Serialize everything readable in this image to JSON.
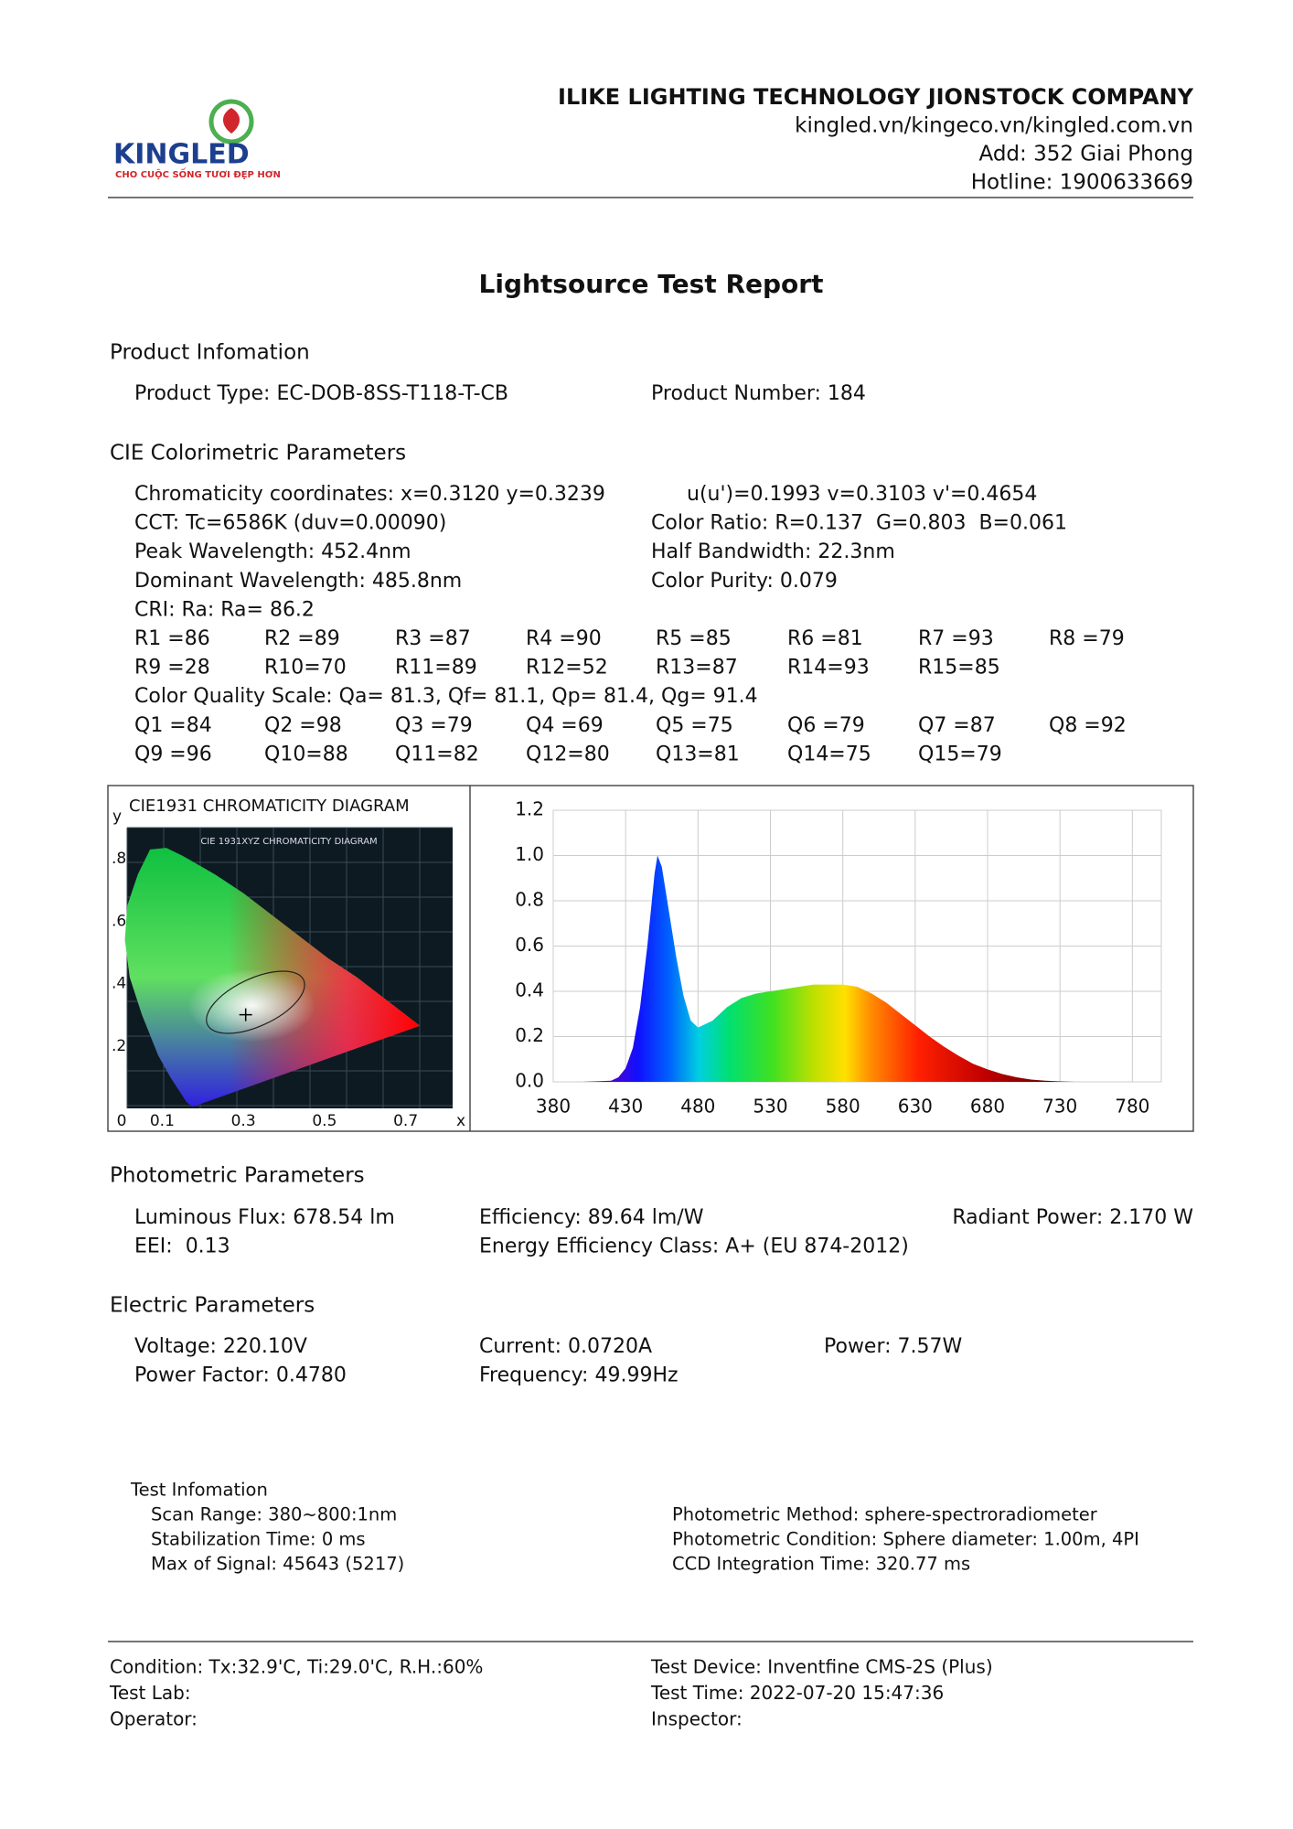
{
  "header": {
    "logo_brand": "KINGLED",
    "logo_slogan": "CHO CUỘC SỐNG TƯƠI ĐẸP HƠN",
    "company": "ILIKE LIGHTING TECHNOLOGY JIONSTOCK COMPANY",
    "website": "kingled.vn/kingeco.vn/kingled.com.vn",
    "address": "Add: 352 Giai Phong",
    "hotline": "Hotline: 1900633669"
  },
  "title": "Lightsource Test Report",
  "product": {
    "heading": "Product Infomation",
    "rows": [
      [
        "Product Type: EC-DOB-8SS-T118-T-CB",
        "Product Number: 184"
      ]
    ]
  },
  "cie": {
    "heading": "CIE Colorimetric Parameters",
    "rows": [
      [
        "Chromaticity coordinates: x=0.3120 y=0.3239",
        "u(u')=0.1993 v=0.3103 v'=0.4654"
      ],
      [
        "CCT: Tc=6586K (duv=0.00090)",
        "Color Ratio: R=0.137  G=0.803  B=0.061"
      ],
      [
        "Peak Wavelength: 452.4nm",
        "Half Bandwidth: 22.3nm"
      ],
      [
        "Dominant Wavelength: 485.8nm",
        "Color Purity: 0.079"
      ],
      [
        "CRI: Ra: Ra= 86.2"
      ],
      [
        "R1 =86",
        "R2 =89",
        "R3 =87",
        "R4 =90",
        "R5 =85",
        "R6 =81",
        "R7 =93",
        "R8 =79"
      ],
      [
        "R9 =28",
        "R10=70",
        "R11=89",
        "R12=52",
        "R13=87",
        "R14=93",
        "R15=85"
      ],
      [
        "Color Quality Scale: Qa= 81.3, Qf= 81.1, Qp= 81.4, Qg= 91.4"
      ],
      [
        "Q1 =84",
        "Q2 =98",
        "Q3 =79",
        "Q4 =69",
        "Q5 =75",
        "Q6 =79",
        "Q7 =87",
        "Q8 =92"
      ],
      [
        "Q9 =96",
        "Q10=88",
        "Q11=82",
        "Q12=80",
        "Q13=81",
        "Q14=75",
        "Q15=79"
      ]
    ]
  },
  "chart_data": [
    {
      "type": "chromaticity",
      "title": "CIE1931 CHROMATICITY DIAGRAM",
      "image_caption": "CIE 1931XYZ CHROMATICITY DIAGRAM",
      "xlabel": "x",
      "ylabel": "y",
      "xlim": [
        0,
        0.8
      ],
      "ylim": [
        0,
        0.9
      ],
      "xticks": [
        0,
        0.1,
        0.3,
        0.5,
        0.7
      ],
      "yticks": [
        {
          "value": 0.2,
          "label": ".2"
        },
        {
          "value": 0.4,
          "label": ".4"
        },
        {
          "value": 0.6,
          "label": ".6"
        },
        {
          "value": 0.8,
          "label": ".8"
        }
      ]
    },
    {
      "type": "area",
      "grid": true,
      "x": [
        380,
        400,
        420,
        425,
        430,
        435,
        440,
        445,
        450,
        452,
        455,
        460,
        465,
        470,
        475,
        480,
        490,
        500,
        510,
        520,
        530,
        540,
        550,
        560,
        570,
        580,
        590,
        600,
        610,
        620,
        630,
        640,
        650,
        660,
        670,
        680,
        690,
        700,
        710,
        720,
        730,
        740,
        760,
        780,
        800
      ],
      "values": [
        0,
        0,
        0.005,
        0.02,
        0.06,
        0.15,
        0.33,
        0.6,
        0.92,
        1.0,
        0.95,
        0.75,
        0.55,
        0.38,
        0.27,
        0.24,
        0.27,
        0.33,
        0.37,
        0.39,
        0.4,
        0.41,
        0.42,
        0.43,
        0.43,
        0.43,
        0.42,
        0.39,
        0.35,
        0.3,
        0.25,
        0.2,
        0.155,
        0.115,
        0.08,
        0.055,
        0.035,
        0.02,
        0.01,
        0.005,
        0.002,
        0,
        0,
        0,
        0
      ],
      "xlim": [
        380,
        800
      ],
      "ylim": [
        0,
        1.2
      ],
      "xticks": [
        380,
        430,
        480,
        530,
        580,
        630,
        680,
        730,
        780
      ],
      "yticks": [
        {
          "value": 0,
          "label": "0.0"
        },
        0.2,
        0.4,
        0.6,
        0.8,
        {
          "value": 1,
          "label": "1.0"
        },
        1.2
      ]
    }
  ],
  "photometric": {
    "heading": "Photometric Parameters",
    "rows": [
      [
        "Luminous Flux: 678.54 lm",
        "Efficiency: 89.64 lm/W",
        "Radiant Power: 2.170 W"
      ],
      [
        "EEI:  0.13",
        "Energy Efficiency Class: A+ (EU 874-2012)"
      ]
    ]
  },
  "electric": {
    "heading": "Electric Parameters",
    "rows": [
      [
        "Voltage: 220.10V",
        "Current: 0.0720A",
        "Power: 7.57W"
      ],
      [
        "Power Factor: 0.4780",
        "Frequency: 49.99Hz"
      ]
    ]
  },
  "test_info": {
    "heading": "Test Infomation",
    "left": [
      "Scan Range: 380~800:1nm",
      "Stabilization Time: 0 ms",
      "Max of Signal: 45643 (5217)"
    ],
    "right": [
      "Photometric Method: sphere-spectroradiometer",
      "Photometric Condition: Sphere diameter: 1.00m, 4PI",
      "CCD Integration Time: 320.77 ms"
    ]
  },
  "footer": {
    "rows": [
      [
        "Condition: Tx:32.9'C, Ti:29.0'C, R.H.:60%",
        "Test Device: Inventfine CMS-2S (Plus)"
      ],
      [
        "Test Lab:",
        "Test Time: 2022-07-20 15:47:36"
      ],
      [
        "Operator:",
        "Inspector:"
      ]
    ]
  }
}
